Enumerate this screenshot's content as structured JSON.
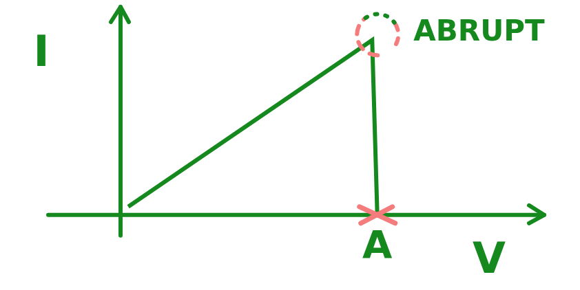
{
  "chart_data": {
    "type": "line",
    "x": [
      0.03,
      0.98,
      1.0
    ],
    "values": [
      0.04,
      0.84,
      0
    ],
    "color": "#15891e",
    "xlabel": "V",
    "ylabel": "I",
    "xlim": [
      0,
      1.65
    ],
    "ylim": [
      0,
      1
    ],
    "xticks": [
      {
        "value": 1,
        "label": "A"
      }
    ],
    "yticks": [],
    "tick_labels": "x",
    "grid": false,
    "annotations": [
      {
        "text": "ABRUPT",
        "x": 0.98,
        "y": 0.84
      }
    ]
  }
}
